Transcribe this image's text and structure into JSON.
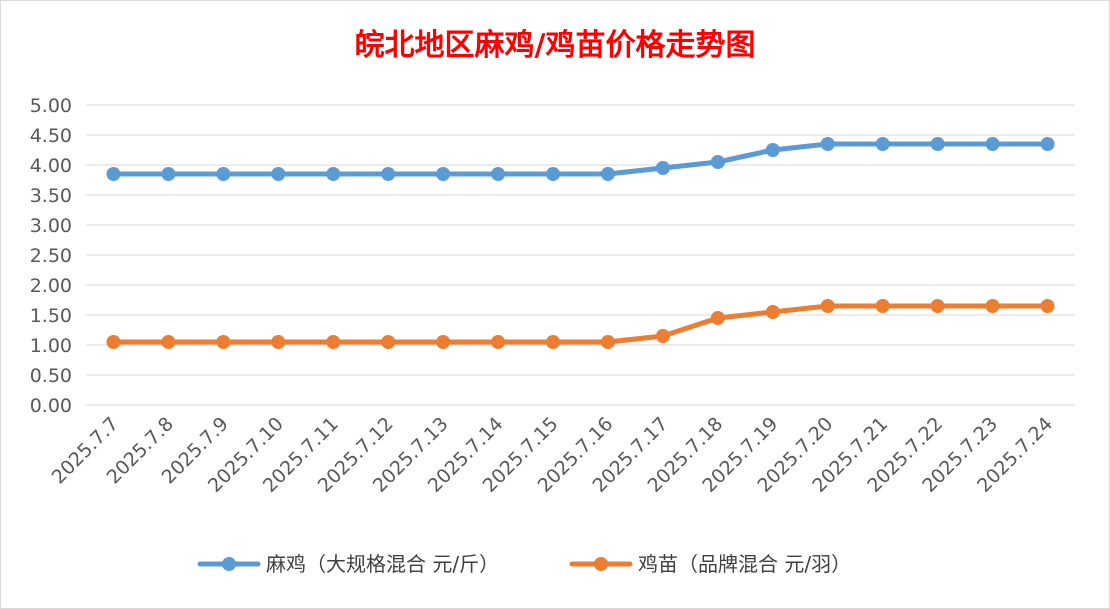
{
  "chart_data": {
    "type": "line",
    "title": "皖北地区麻鸡/鸡苗价格走势图",
    "xlabel": "",
    "ylabel": "",
    "ylim": [
      0,
      5
    ],
    "y_ticks": [
      "0.00",
      "0.50",
      "1.00",
      "1.50",
      "2.00",
      "2.50",
      "3.00",
      "3.50",
      "4.00",
      "4.50",
      "5.00"
    ],
    "categories": [
      "2025.7.7",
      "2025.7.8",
      "2025.7.9",
      "2025.7.10",
      "2025.7.11",
      "2025.7.12",
      "2025.7.13",
      "2025.7.14",
      "2025.7.15",
      "2025.7.16",
      "2025.7.17",
      "2025.7.18",
      "2025.7.19",
      "2025.7.20",
      "2025.7.21",
      "2025.7.22",
      "2025.7.23",
      "2025.7.24"
    ],
    "series": [
      {
        "name": "麻鸡（大规格混合 元/斤）",
        "color": "#5b9bd5",
        "values": [
          3.85,
          3.85,
          3.85,
          3.85,
          3.85,
          3.85,
          3.85,
          3.85,
          3.85,
          3.85,
          3.95,
          4.05,
          4.25,
          4.35,
          4.35,
          4.35,
          4.35,
          4.35
        ]
      },
      {
        "name": "鸡苗（品牌混合 元/羽）",
        "color": "#ed7d31",
        "values": [
          1.05,
          1.05,
          1.05,
          1.05,
          1.05,
          1.05,
          1.05,
          1.05,
          1.05,
          1.05,
          1.15,
          1.45,
          1.55,
          1.65,
          1.65,
          1.65,
          1.65,
          1.65
        ]
      }
    ],
    "grid": true,
    "legend_position": "bottom"
  }
}
